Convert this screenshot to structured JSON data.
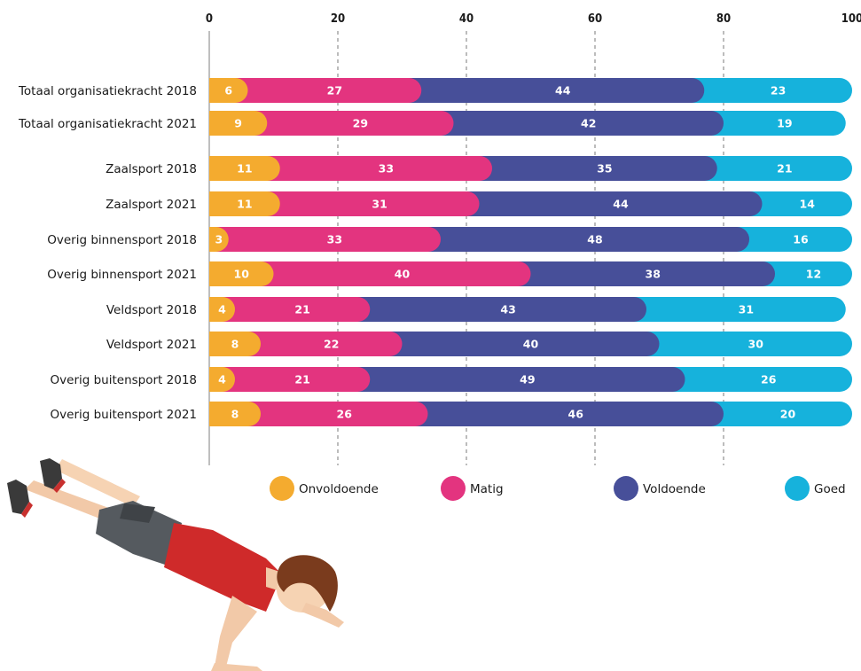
{
  "chart_data": {
    "type": "bar",
    "orientation": "horizontal",
    "stacked": true,
    "xlim": [
      0,
      100
    ],
    "x_ticks": [
      0,
      20,
      40,
      60,
      80,
      100
    ],
    "grid": true,
    "legend_position": "bottom",
    "categories": [
      "Totaal organisatiekracht 2018",
      "Totaal organisatiekracht 2021",
      "Zaalsport 2018",
      "Zaalsport 2021",
      "Overig binnensport 2018",
      "Overig binnensport 2021",
      "Veldsport 2018",
      "Veldsport 2021",
      "Overig buitensport 2018",
      "Overig buitensport 2021"
    ],
    "series": [
      {
        "name": "Onvoldoende",
        "color": "#f4ab2f",
        "values": [
          6,
          9,
          11,
          11,
          3,
          10,
          4,
          8,
          4,
          8
        ]
      },
      {
        "name": "Matig",
        "color": "#e3347f",
        "values": [
          27,
          29,
          33,
          31,
          33,
          40,
          21,
          22,
          21,
          26
        ]
      },
      {
        "name": "Voldoende",
        "color": "#474f99",
        "values": [
          44,
          42,
          35,
          44,
          48,
          38,
          43,
          40,
          49,
          46
        ]
      },
      {
        "name": "Goed",
        "color": "#16b2dc",
        "values": [
          23,
          19,
          21,
          14,
          16,
          12,
          31,
          30,
          26,
          20
        ]
      }
    ]
  },
  "illustration": {
    "icon": "push-up-person-illustration"
  }
}
